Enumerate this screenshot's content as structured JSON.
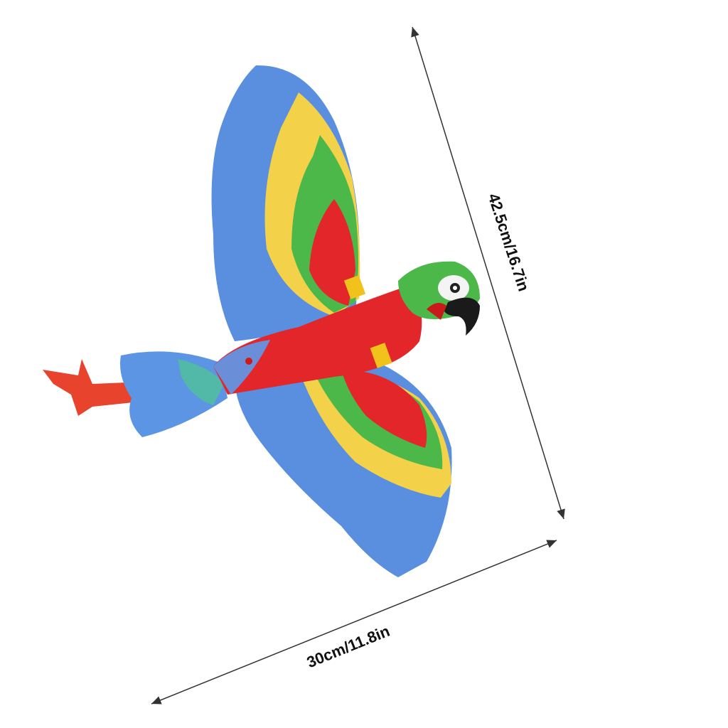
{
  "product": {
    "image_subject": "parrot-toy",
    "dimensions": {
      "length_label": "42.5cm/16.7in",
      "width_label": "30cm/11.8in"
    },
    "colors": {
      "blue": "#5a8fe0",
      "yellow": "#f3d24a",
      "green": "#4cb84a",
      "red": "#e2262a",
      "beak": "#1a1a1a"
    }
  }
}
